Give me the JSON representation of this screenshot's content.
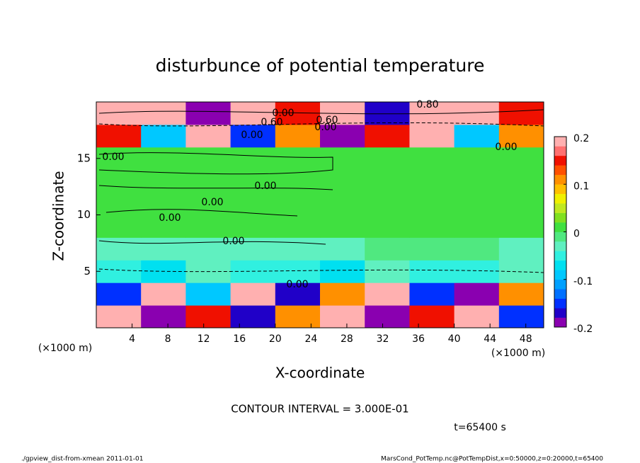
{
  "chart_data": {
    "type": "heatmap",
    "title": "disturbunce of potential temperature",
    "xlabel": "X-coordinate",
    "ylabel": "Z-coordinate",
    "x_unit": "(×1000 m)",
    "y_unit": "(×1000 m)",
    "xlim": [
      0,
      50
    ],
    "ylim": [
      0,
      20
    ],
    "xticks": [
      4,
      8,
      12,
      16,
      20,
      24,
      28,
      32,
      36,
      40,
      44,
      48
    ],
    "yticks": [
      5,
      10,
      15
    ],
    "x_edges": [
      0,
      5,
      10,
      15,
      20,
      25,
      30,
      35,
      40,
      45,
      50
    ],
    "y_edges": [
      0,
      2,
      4,
      6,
      8,
      10,
      12,
      14,
      16,
      18,
      20
    ],
    "values": [
      [
        0.19,
        -0.19,
        0.15,
        -0.18,
        0.1,
        0.19,
        -0.19,
        0.15,
        0.18,
        -0.15
      ],
      [
        -0.15,
        0.18,
        -0.1,
        0.19,
        -0.18,
        0.1,
        0.19,
        -0.15,
        -0.19,
        0.1
      ],
      [
        -0.05,
        -0.08,
        -0.04,
        -0.06,
        -0.05,
        -0.07,
        -0.03,
        -0.05,
        -0.06,
        -0.04
      ],
      [
        -0.03,
        -0.03,
        -0.03,
        -0.03,
        -0.03,
        -0.03,
        -0.02,
        -0.02,
        -0.02,
        -0.03
      ],
      [
        0,
        0,
        0,
        0,
        0,
        0,
        0,
        0.01,
        0.01,
        0
      ],
      [
        0,
        0,
        0,
        0,
        0,
        0,
        0,
        0,
        0.01,
        0
      ],
      [
        0.01,
        0.01,
        0,
        0,
        0,
        0,
        0,
        0,
        0,
        0
      ],
      [
        0,
        0,
        0,
        0,
        0,
        0,
        0,
        0,
        0,
        0
      ],
      [
        0.15,
        -0.1,
        0.19,
        -0.15,
        0.1,
        -0.19,
        0.15,
        0.19,
        -0.1,
        0.1
      ],
      [
        0.19,
        0.18,
        -0.19,
        0.19,
        0.15,
        0.19,
        -0.18,
        0.19,
        0.19,
        0.15
      ]
    ],
    "levels": [
      -0.2,
      -0.18,
      -0.16,
      -0.14,
      -0.12,
      -0.1,
      -0.08,
      -0.06,
      -0.04,
      -0.02,
      0,
      0.02,
      0.04,
      0.06,
      0.08,
      0.1,
      0.12,
      0.14,
      0.16,
      0.18,
      0.2
    ],
    "colors": [
      "#8a00b0",
      "#2000c8",
      "#0030ff",
      "#0070ff",
      "#00a0ff",
      "#00c8ff",
      "#00e0f0",
      "#30f0e0",
      "#60f0c0",
      "#50e880",
      "#40e040",
      "#80e020",
      "#c0e820",
      "#f0f000",
      "#ffc000",
      "#ff9000",
      "#ff5000",
      "#f01000",
      "#ff7070",
      "#ffb0b0"
    ],
    "colorbar_ticks": [
      0.2,
      0.1,
      0,
      -0.1,
      -0.2
    ],
    "contour_labels": [
      "0.00",
      "0.00",
      "0.00",
      "0.00",
      "0.00",
      "0.00",
      "0.00",
      "0.00",
      "0.60",
      "0.60",
      "0.00",
      "0.80",
      "0.00"
    ],
    "contour_interval": "CONTOUR INTERVAL = 3.000E-01",
    "time_label": "t=65400 s",
    "footer_left": "./gpview_dist-from-xmean  2011-01-01",
    "footer_right": "MarsCond_PotTemp.nc@PotTempDist,x=0:50000,z=0:20000,t=65400"
  }
}
